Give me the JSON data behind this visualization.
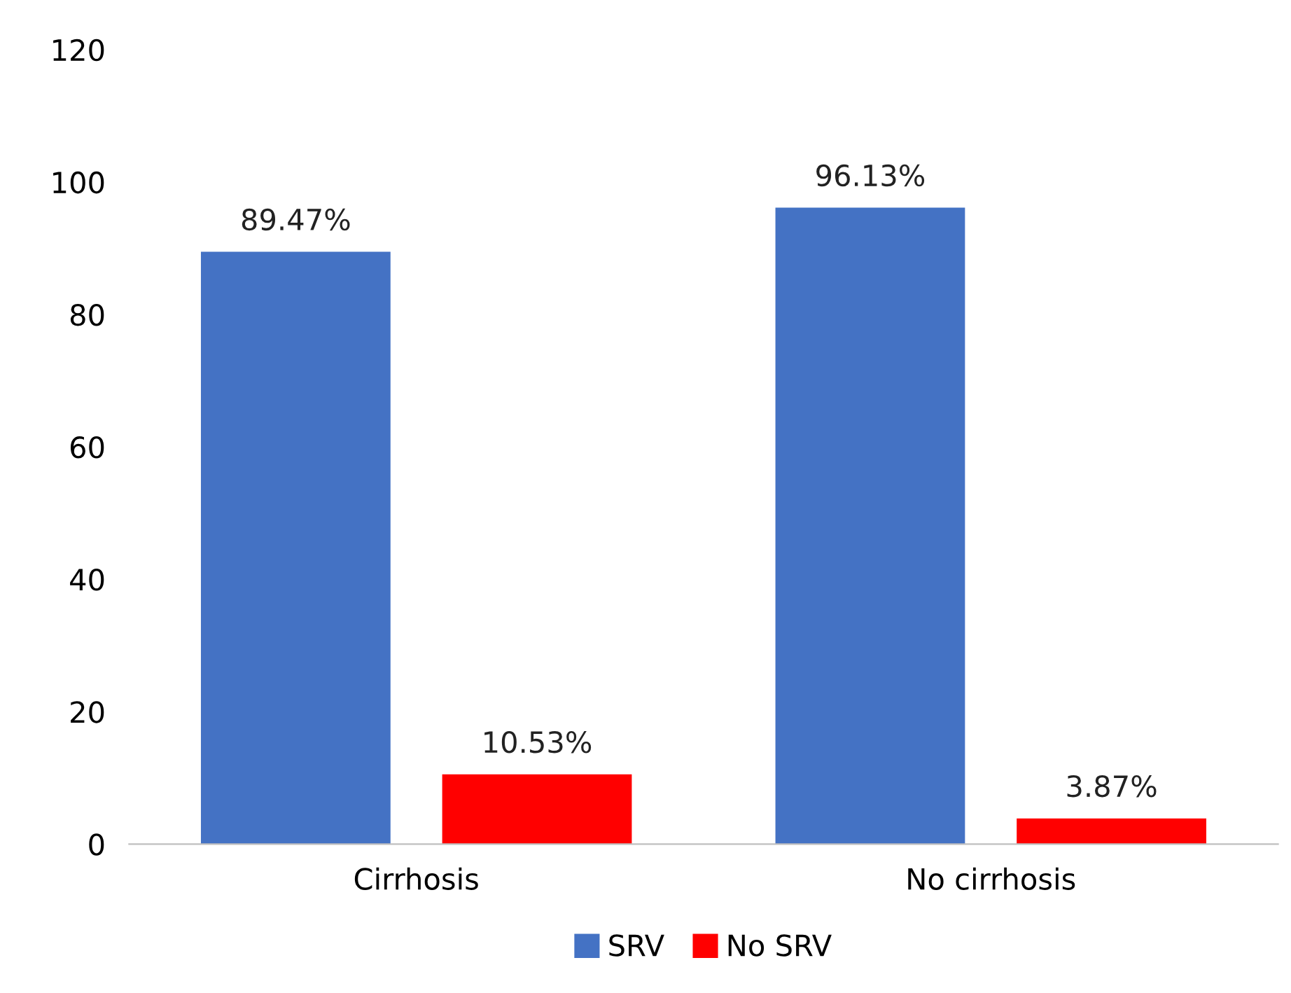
{
  "chart_data": {
    "type": "bar",
    "categories": [
      "Cirrhosis",
      "No cirrhosis"
    ],
    "series": [
      {
        "name": "SRV",
        "color": "#4472c4",
        "values": [
          89.47,
          96.13
        ],
        "value_labels": [
          "89.47%",
          "96.13%"
        ]
      },
      {
        "name": "No SRV",
        "color": "#ff0000",
        "values": [
          10.53,
          3.87
        ],
        "value_labels": [
          "10.53%",
          "3.87%"
        ]
      }
    ],
    "ylim": [
      0,
      120
    ],
    "yticks": [
      0,
      20,
      40,
      60,
      80,
      100,
      120
    ],
    "grid": false,
    "legend": "bottom"
  }
}
